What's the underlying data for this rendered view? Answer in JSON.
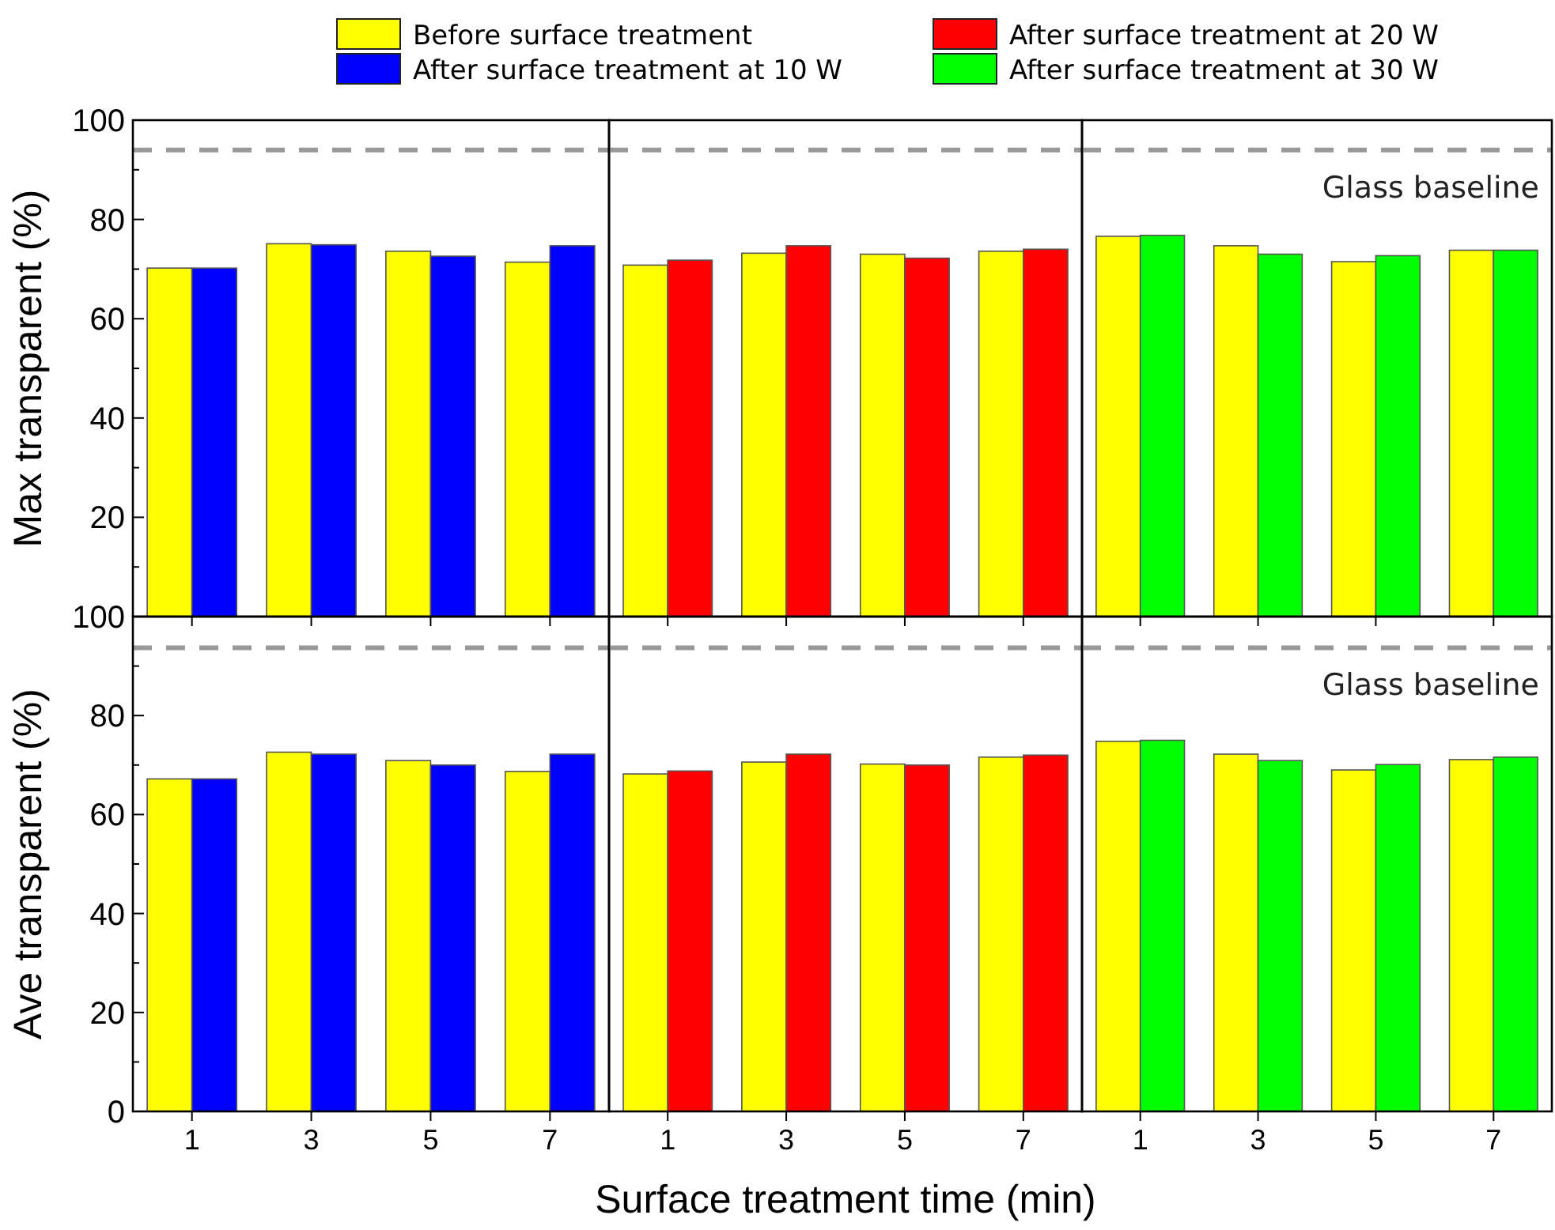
{
  "chart_data": [
    {
      "type": "bar",
      "categories": [
        "1",
        "3",
        "5",
        "7"
      ],
      "ylabel": "Max transparent (%)",
      "ylim": [
        0,
        100
      ],
      "yticks": [
        {
          "value": 0,
          "label": null
        },
        {
          "value": 10,
          "label": null
        },
        20,
        {
          "value": 30,
          "label": null
        },
        40,
        {
          "value": 50,
          "label": null
        },
        60,
        {
          "value": 70,
          "label": null
        },
        80,
        {
          "value": 90,
          "label": null
        },
        100
      ],
      "tick_labels": "y",
      "legend": "top",
      "series": [
        {
          "name": "Before surface treatment",
          "color": "#ffff00",
          "values": [
            70.2,
            75.1,
            73.6,
            71.4
          ]
        },
        {
          "name": "After surface treatment at 10 W",
          "color": "#0000ff",
          "values": [
            70.2,
            74.9,
            72.6,
            74.7
          ]
        }
      ],
      "ref_lines": [
        {
          "axis": "y",
          "value": 94,
          "color": "#999999",
          "line_style": "dashed"
        }
      ]
    },
    {
      "type": "bar",
      "categories": [
        "1",
        "3",
        "5",
        "7"
      ],
      "ylim": [
        0,
        100
      ],
      "tick_labels": false,
      "legend": "top",
      "series": [
        {
          "name": "Before surface treatment",
          "color": "#ffff00",
          "values": [
            70.8,
            73.2,
            73.0,
            73.6
          ]
        },
        {
          "name": "After surface treatment at 20 W",
          "color": "#ff0000",
          "values": [
            71.8,
            74.7,
            72.2,
            74.0
          ]
        }
      ],
      "ref_lines": [
        {
          "axis": "y",
          "value": 94,
          "color": "#999999",
          "line_style": "dashed"
        }
      ]
    },
    {
      "type": "bar",
      "categories": [
        "1",
        "3",
        "5",
        "7"
      ],
      "ylim": [
        0,
        100
      ],
      "tick_labels": false,
      "legend": "top",
      "series": [
        {
          "name": "Before surface treatment",
          "color": "#ffff00",
          "values": [
            76.6,
            74.7,
            71.5,
            73.8
          ]
        },
        {
          "name": "After surface treatment at 30 W",
          "color": "#00ff00",
          "values": [
            76.8,
            73.0,
            72.7,
            73.8
          ]
        }
      ],
      "ref_lines": [
        {
          "axis": "y",
          "value": 94,
          "label": "Glass baseline",
          "color": "#999999",
          "line_style": "dashed"
        }
      ]
    },
    {
      "type": "bar",
      "categories": [
        "1",
        "3",
        "5",
        "7"
      ],
      "ylabel": "Ave transparent (%)",
      "ylim": [
        0,
        100
      ],
      "yticks": [
        0,
        {
          "value": 10,
          "label": null
        },
        20,
        {
          "value": 30,
          "label": null
        },
        40,
        {
          "value": 50,
          "label": null
        },
        60,
        {
          "value": 70,
          "label": null
        },
        80,
        {
          "value": 90,
          "label": null
        },
        100
      ],
      "legend": "top",
      "series": [
        {
          "name": "Before surface treatment",
          "color": "#ffff00",
          "values": [
            67.2,
            72.6,
            70.9,
            68.7
          ]
        },
        {
          "name": "After surface treatment at 10 W",
          "color": "#0000ff",
          "values": [
            67.2,
            72.2,
            70.0,
            72.2
          ]
        }
      ],
      "ref_lines": [
        {
          "axis": "y",
          "value": 93.7,
          "color": "#999999",
          "line_style": "dashed"
        }
      ]
    },
    {
      "type": "bar",
      "categories": [
        "1",
        "3",
        "5",
        "7"
      ],
      "xlabel": "Surface treatment time (min)",
      "ylim": [
        0,
        100
      ],
      "tick_labels": "x",
      "legend": "top",
      "series": [
        {
          "name": "Before surface treatment",
          "color": "#ffff00",
          "values": [
            68.2,
            70.6,
            70.2,
            71.6
          ]
        },
        {
          "name": "After surface treatment at 20 W",
          "color": "#ff0000",
          "values": [
            68.8,
            72.2,
            70.0,
            72.0
          ]
        }
      ],
      "ref_lines": [
        {
          "axis": "y",
          "value": 93.7,
          "color": "#999999",
          "line_style": "dashed"
        }
      ]
    },
    {
      "type": "bar",
      "categories": [
        "1",
        "3",
        "5",
        "7"
      ],
      "ylim": [
        0,
        100
      ],
      "tick_labels": "x",
      "legend": "top",
      "series": [
        {
          "name": "Before surface treatment",
          "color": "#ffff00",
          "values": [
            74.8,
            72.2,
            69.0,
            71.1
          ]
        },
        {
          "name": "After surface treatment at 30 W",
          "color": "#00ff00",
          "values": [
            75.0,
            70.9,
            70.1,
            71.6
          ]
        }
      ],
      "ref_lines": [
        {
          "axis": "y",
          "value": 93.7,
          "label": "Glass baseline",
          "color": "#999999",
          "line_style": "dashed"
        }
      ]
    }
  ]
}
